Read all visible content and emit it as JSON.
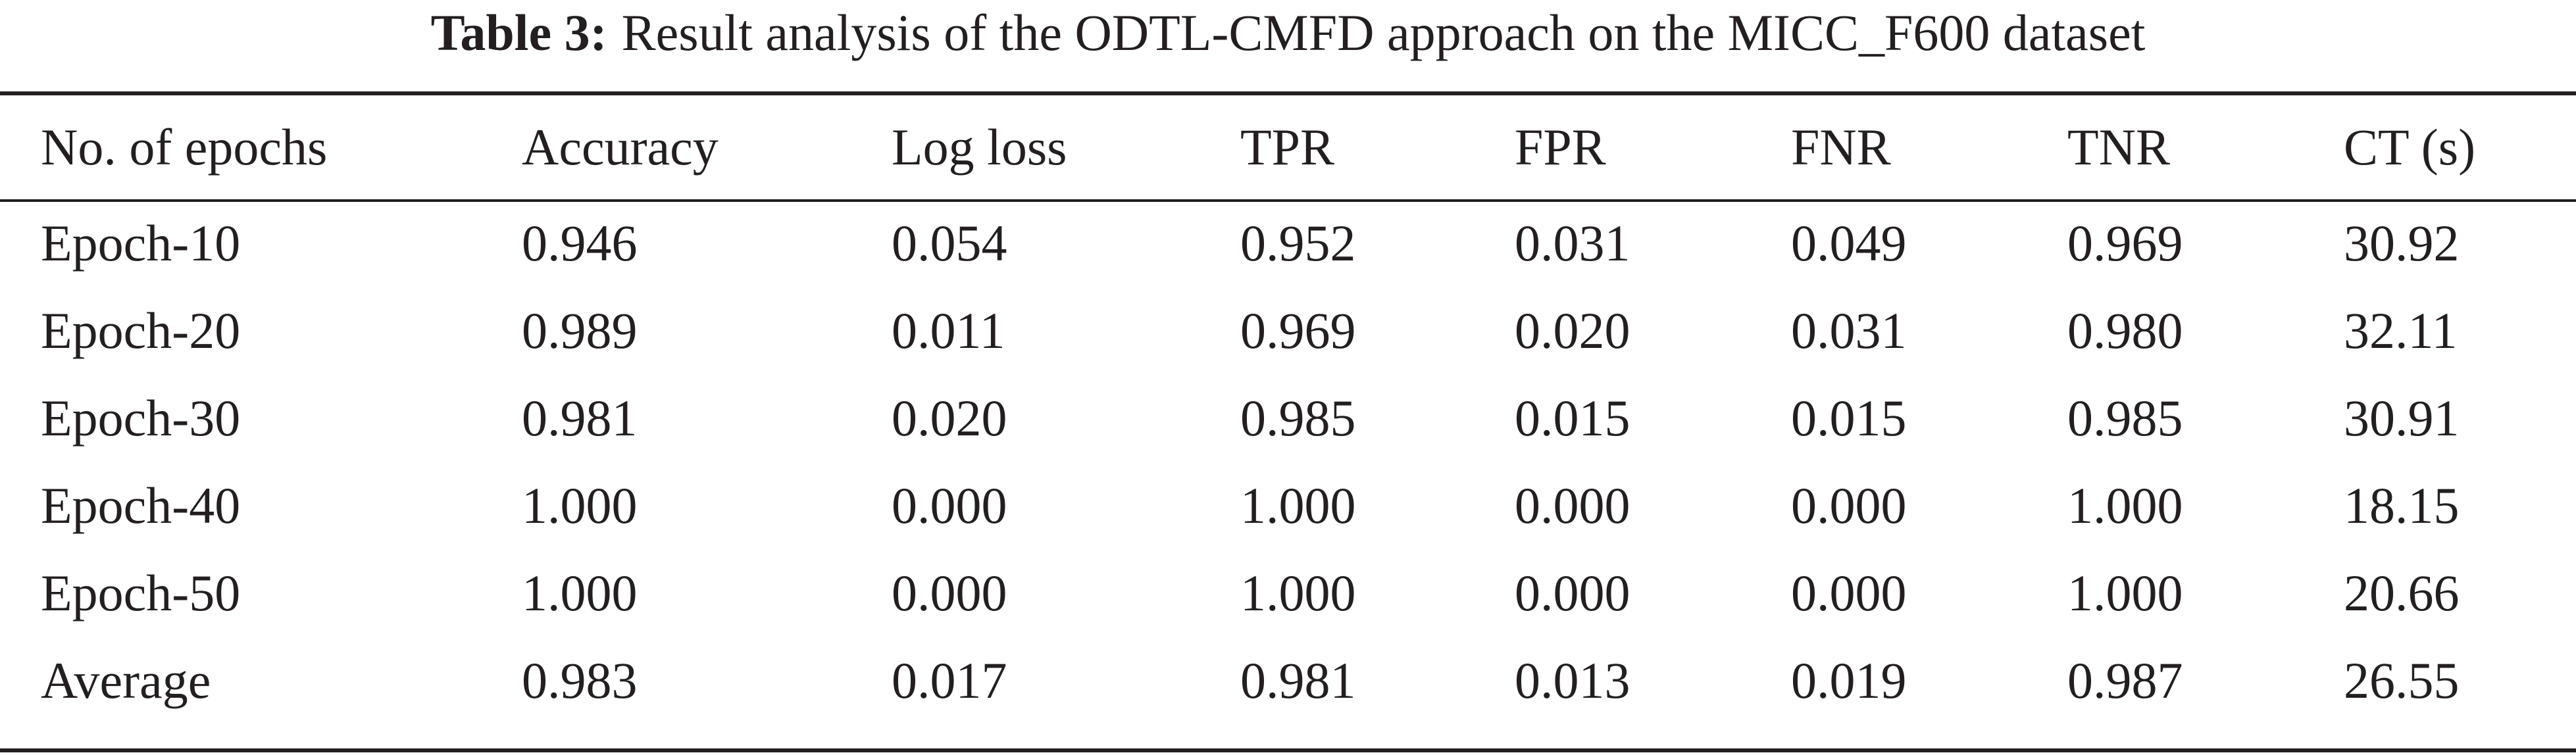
{
  "caption": {
    "label": "Table 3:",
    "text": "Result analysis of the ODTL-CMFD approach on the MICC_F600 dataset"
  },
  "table": {
    "headers": [
      "No. of epochs",
      "Accuracy",
      "Log loss",
      "TPR",
      "FPR",
      "FNR",
      "TNR",
      "CT (s)"
    ],
    "rows": [
      [
        "Epoch-10",
        "0.946",
        "0.054",
        "0.952",
        "0.031",
        "0.049",
        "0.969",
        "30.92"
      ],
      [
        "Epoch-20",
        "0.989",
        "0.011",
        "0.969",
        "0.020",
        "0.031",
        "0.980",
        "32.11"
      ],
      [
        "Epoch-30",
        "0.981",
        "0.020",
        "0.985",
        "0.015",
        "0.015",
        "0.985",
        "30.91"
      ],
      [
        "Epoch-40",
        "1.000",
        "0.000",
        "1.000",
        "0.000",
        "0.000",
        "1.000",
        "18.15"
      ],
      [
        "Epoch-50",
        "1.000",
        "0.000",
        "1.000",
        "0.000",
        "0.000",
        "1.000",
        "20.66"
      ],
      [
        "Average",
        "0.983",
        "0.017",
        "0.981",
        "0.013",
        "0.019",
        "0.987",
        "26.55"
      ]
    ]
  }
}
